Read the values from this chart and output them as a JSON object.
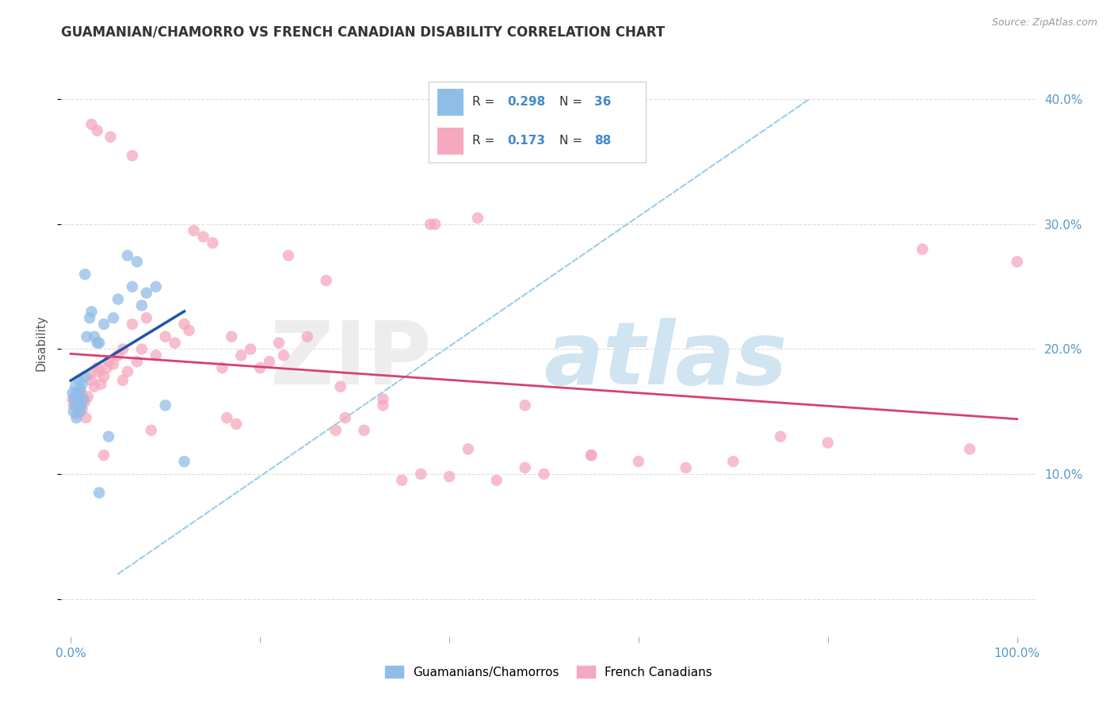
{
  "title": "GUAMANIAN/CHAMORRO VS FRENCH CANADIAN DISABILITY CORRELATION CHART",
  "source": "Source: ZipAtlas.com",
  "ylabel": "Disability",
  "xlim": [
    -1,
    102
  ],
  "ylim": [
    -3,
    44
  ],
  "blue_color": "#90BDE8",
  "pink_color": "#F5A8BE",
  "blue_line_color": "#2255AA",
  "pink_line_color": "#D84070",
  "dashed_line_color": "#90C8E8",
  "grid_color": "#DDDDDD",
  "legend_R1": "0.298",
  "legend_N1": "36",
  "legend_R2": "0.173",
  "legend_N2": "88",
  "guamanian_x": [
    0.2,
    0.3,
    0.4,
    0.5,
    0.5,
    0.6,
    0.6,
    0.7,
    0.8,
    0.9,
    1.0,
    1.0,
    1.1,
    1.2,
    1.3,
    1.5,
    1.7,
    2.0,
    2.2,
    2.5,
    3.0,
    3.5,
    4.5,
    5.0,
    6.0,
    6.5,
    7.5,
    8.0,
    10.0,
    12.0,
    1.5,
    2.8,
    4.0,
    7.0,
    9.0,
    3.0
  ],
  "guamanian_y": [
    16.5,
    15.0,
    16.0,
    17.0,
    15.5,
    16.5,
    14.5,
    15.8,
    16.2,
    17.5,
    15.0,
    16.8,
    15.5,
    17.2,
    16.0,
    17.8,
    21.0,
    22.5,
    23.0,
    21.0,
    20.5,
    22.0,
    22.5,
    24.0,
    27.5,
    25.0,
    23.5,
    24.5,
    15.5,
    11.0,
    26.0,
    20.5,
    13.0,
    27.0,
    25.0,
    8.5
  ],
  "french_x": [
    0.2,
    0.3,
    0.4,
    0.5,
    0.6,
    0.7,
    0.8,
    0.9,
    1.0,
    1.1,
    1.2,
    1.4,
    1.5,
    1.6,
    1.8,
    2.0,
    2.2,
    2.5,
    2.8,
    3.0,
    3.2,
    3.5,
    3.8,
    4.0,
    4.5,
    5.0,
    5.5,
    6.0,
    6.5,
    7.0,
    7.5,
    8.0,
    9.0,
    10.0,
    11.0,
    12.0,
    13.0,
    14.0,
    15.0,
    16.0,
    17.0,
    18.0,
    19.0,
    20.0,
    21.0,
    22.0,
    23.0,
    25.0,
    27.0,
    29.0,
    31.0,
    33.0,
    35.0,
    37.0,
    40.0,
    43.0,
    45.0,
    48.0,
    50.0,
    55.0,
    60.0,
    65.0,
    70.0,
    75.0,
    80.0,
    90.0,
    95.0,
    100.0,
    4.2,
    6.5,
    8.5,
    16.5,
    22.5,
    28.0,
    33.0,
    38.0,
    42.0,
    48.0,
    55.0,
    5.5,
    2.8,
    12.5,
    17.5,
    28.5,
    38.5,
    3.5,
    2.2,
    1.0
  ],
  "french_y": [
    16.0,
    15.5,
    15.8,
    16.2,
    14.8,
    15.5,
    15.0,
    16.0,
    15.5,
    16.5,
    15.2,
    16.0,
    15.8,
    14.5,
    16.2,
    18.0,
    17.5,
    17.0,
    18.5,
    18.2,
    17.2,
    17.8,
    18.5,
    19.0,
    18.8,
    19.5,
    17.5,
    18.2,
    22.0,
    19.0,
    20.0,
    22.5,
    19.5,
    21.0,
    20.5,
    22.0,
    29.5,
    29.0,
    28.5,
    18.5,
    21.0,
    19.5,
    20.0,
    18.5,
    19.0,
    20.5,
    27.5,
    21.0,
    25.5,
    14.5,
    13.5,
    16.0,
    9.5,
    10.0,
    9.8,
    30.5,
    9.5,
    10.5,
    10.0,
    11.5,
    11.0,
    10.5,
    11.0,
    13.0,
    12.5,
    28.0,
    12.0,
    27.0,
    37.0,
    35.5,
    13.5,
    14.5,
    19.5,
    13.5,
    15.5,
    30.0,
    12.0,
    15.5,
    11.5,
    20.0,
    37.5,
    21.5,
    14.0,
    17.0,
    30.0,
    11.5,
    38.0,
    16.5
  ]
}
